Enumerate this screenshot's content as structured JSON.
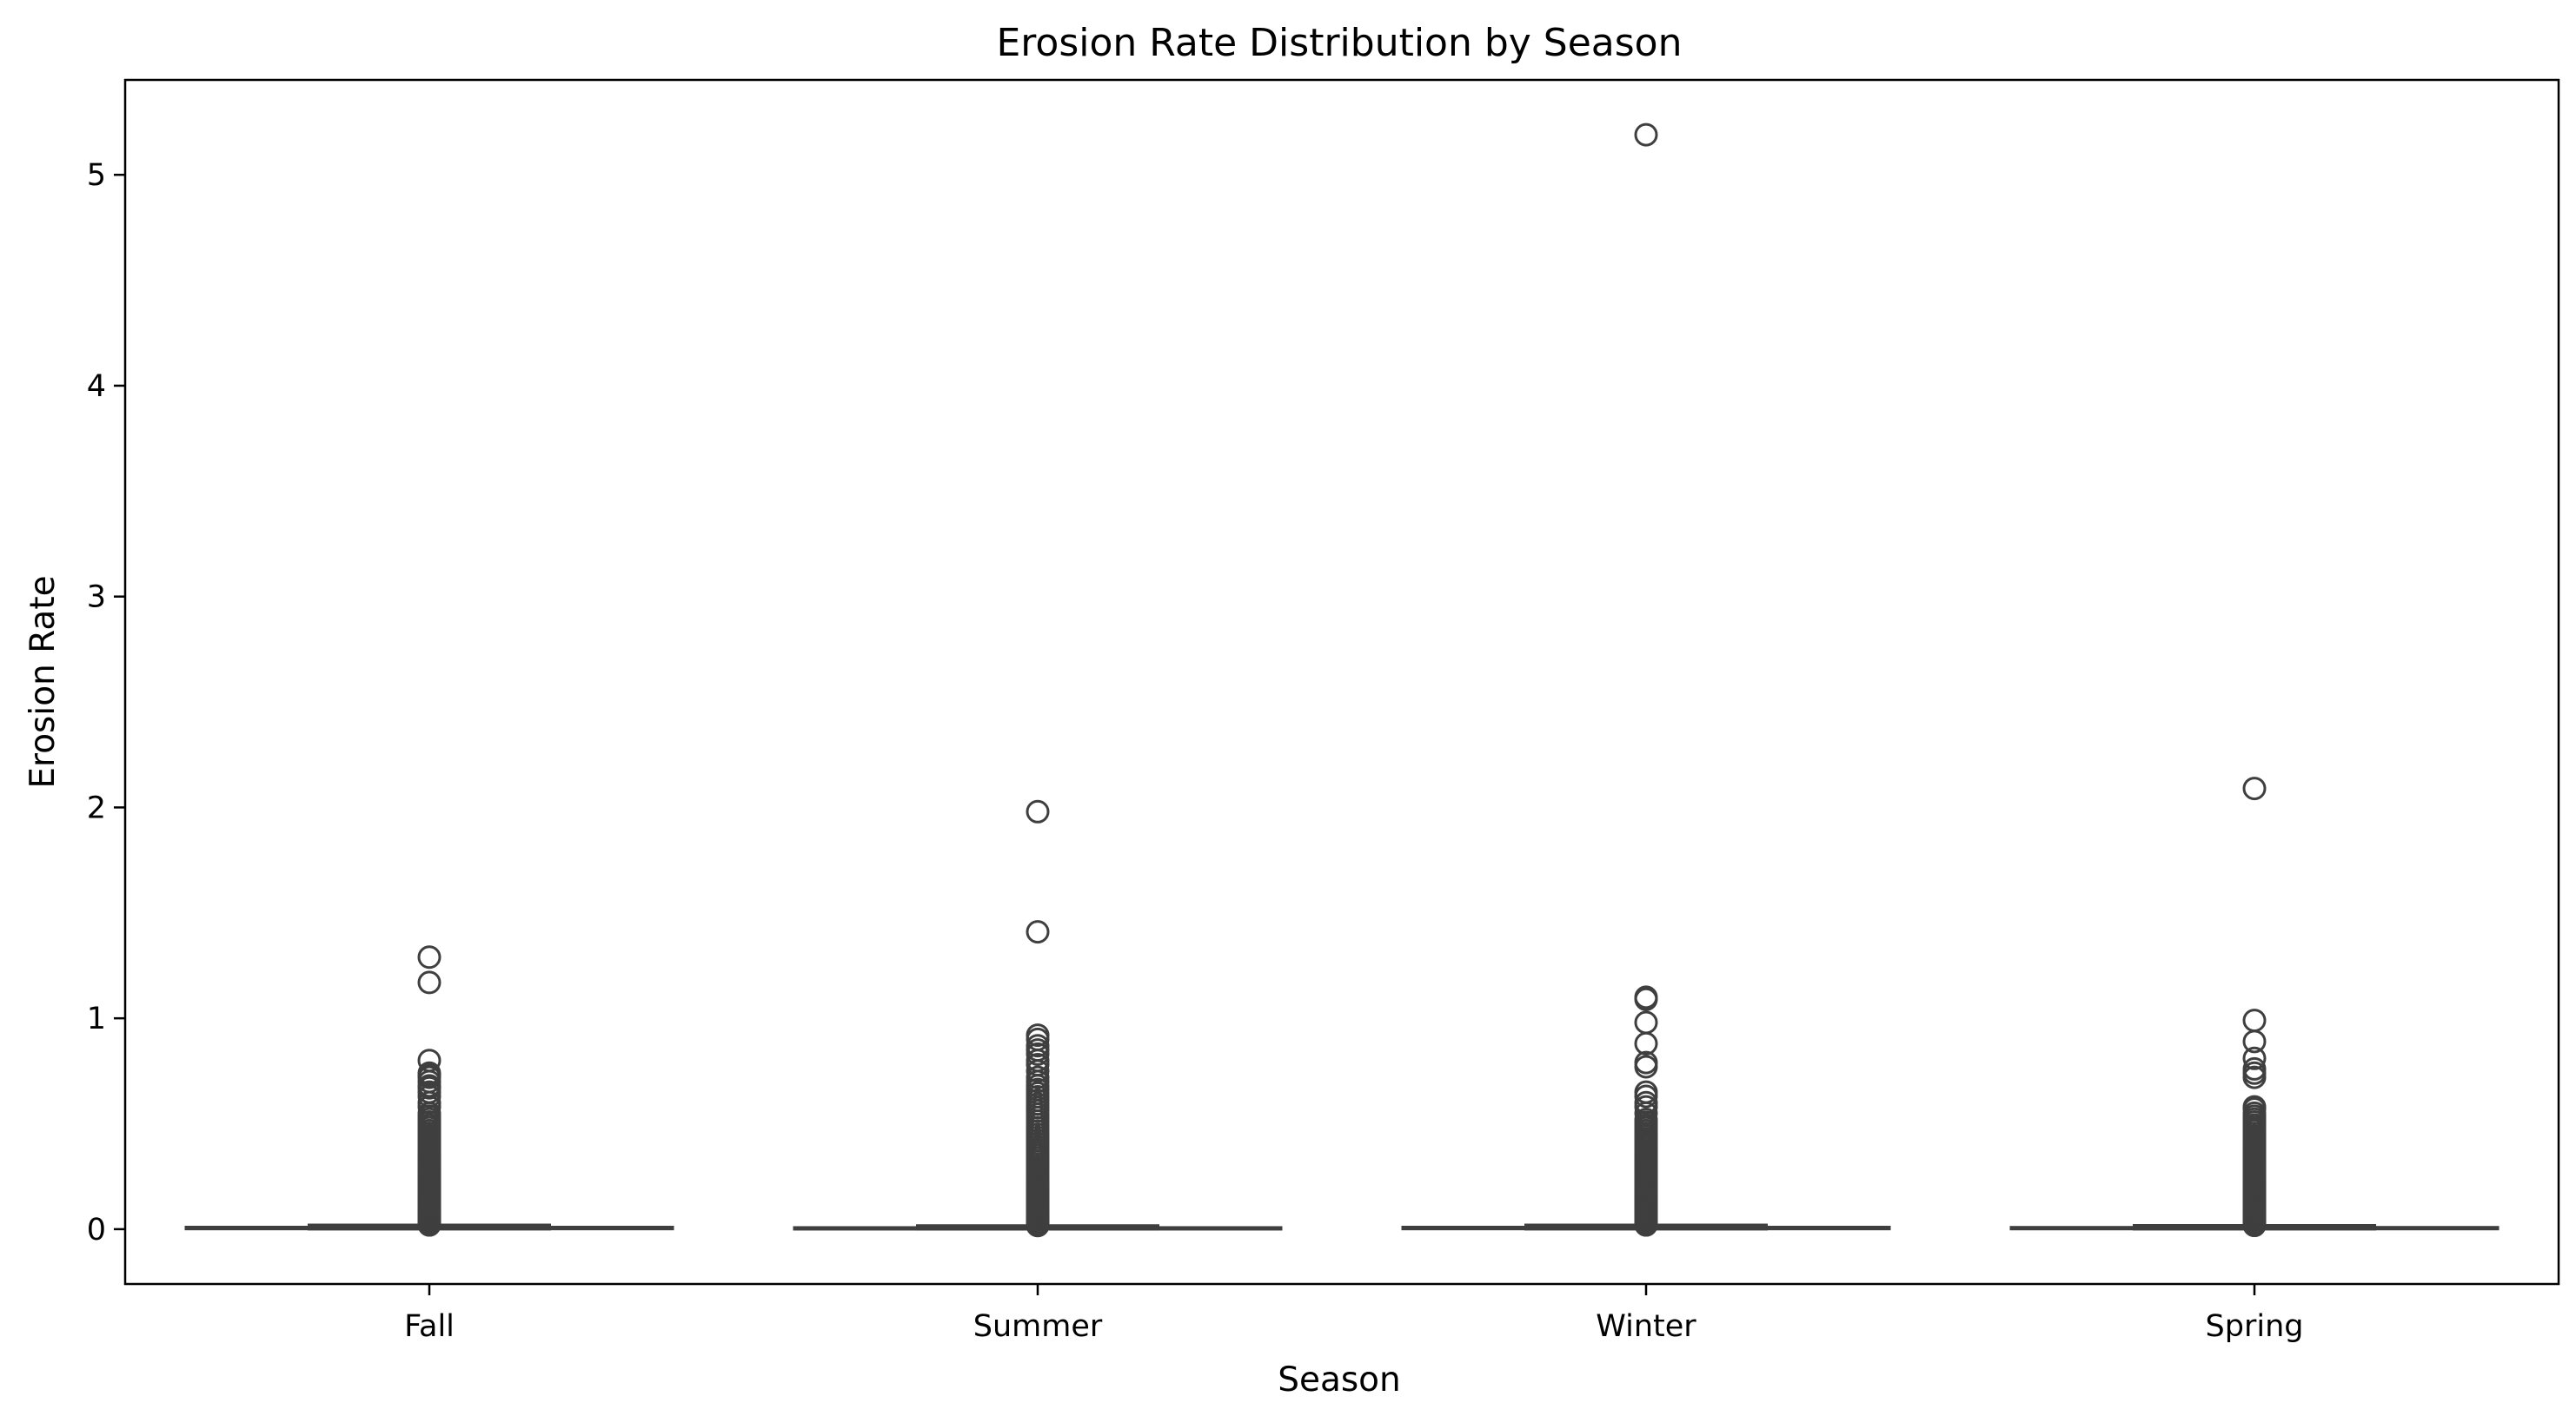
{
  "chart_data": {
    "type": "box",
    "title": "Erosion Rate Distribution by Season",
    "xlabel": "Season",
    "ylabel": "Erosion Rate",
    "categories": [
      "Fall",
      "Summer",
      "Winter",
      "Spring"
    ],
    "ylim": [
      -0.26,
      5.45
    ],
    "yticks": [
      0,
      1,
      2,
      3,
      4,
      5
    ],
    "ytick_labels": [
      "0",
      "1",
      "2",
      "3",
      "4",
      "5"
    ],
    "grid": false,
    "legend": "none",
    "colors": {
      "stroke": "#3f3f3f",
      "box_fill": "#ffffff",
      "axis": "#000000"
    },
    "boxes": [
      {
        "category": "Fall",
        "whisker_low": 0.0,
        "q1": 0.001,
        "median": 0.004,
        "q3": 0.01,
        "whisker_high": 0.02,
        "dense_outlier_range": [
          0.02,
          0.55
        ],
        "outliers": [
          0.58,
          0.6,
          0.63,
          0.65,
          0.67,
          0.68,
          0.7,
          0.72,
          0.73,
          0.74,
          0.8,
          1.17,
          1.29
        ]
      },
      {
        "category": "Summer",
        "whisker_low": 0.0,
        "q1": 0.001,
        "median": 0.003,
        "q3": 0.008,
        "whisker_high": 0.017,
        "dense_outlier_range": [
          0.017,
          0.68
        ],
        "outliers": [
          0.7,
          0.72,
          0.75,
          0.78,
          0.8,
          0.83,
          0.85,
          0.87,
          0.9,
          0.92,
          1.41,
          1.98
        ]
      },
      {
        "category": "Winter",
        "whisker_low": 0.0,
        "q1": 0.001,
        "median": 0.004,
        "q3": 0.01,
        "whisker_high": 0.02,
        "dense_outlier_range": [
          0.02,
          0.52
        ],
        "outliers": [
          0.55,
          0.58,
          0.6,
          0.63,
          0.65,
          0.77,
          0.79,
          0.88,
          0.98,
          1.09,
          1.1,
          5.19
        ]
      },
      {
        "category": "Spring",
        "whisker_low": 0.0,
        "q1": 0.001,
        "median": 0.003,
        "q3": 0.009,
        "whisker_high": 0.018,
        "dense_outlier_range": [
          0.018,
          0.55
        ],
        "outliers": [
          0.57,
          0.58,
          0.72,
          0.74,
          0.76,
          0.81,
          0.89,
          0.99,
          2.09
        ]
      }
    ]
  }
}
